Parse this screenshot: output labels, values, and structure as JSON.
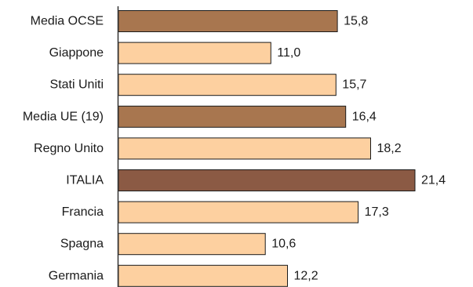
{
  "chart_data": {
    "type": "bar",
    "orientation": "horizontal",
    "categories": [
      "Media OCSE",
      "Giappone",
      "Stati Uniti",
      "Media UE (19)",
      "Regno Unito",
      "ITALIA",
      "Francia",
      "Spagna",
      "Germania"
    ],
    "values": [
      15.8,
      11.0,
      15.7,
      16.4,
      18.2,
      21.4,
      17.3,
      10.6,
      12.2
    ],
    "value_labels": [
      "15,8",
      "11,0",
      "15,7",
      "16,4",
      "18,2",
      "21,4",
      "17,3",
      "10,6",
      "12,2"
    ],
    "bar_colors": [
      "#a8764f",
      "#fdd0a0",
      "#fdd0a0",
      "#a8764f",
      "#fdd0a0",
      "#8b5a44",
      "#fdd0a0",
      "#fdd0a0",
      "#fdd0a0"
    ],
    "xlim": [
      0,
      21.4
    ],
    "grid": false,
    "legend": "none"
  },
  "colors": {
    "light_bar": "#fdd0a0",
    "average_bar": "#a8764f",
    "highlight_bar": "#8b5a44",
    "stroke": "#1a1a1a",
    "axis": "#333333"
  }
}
